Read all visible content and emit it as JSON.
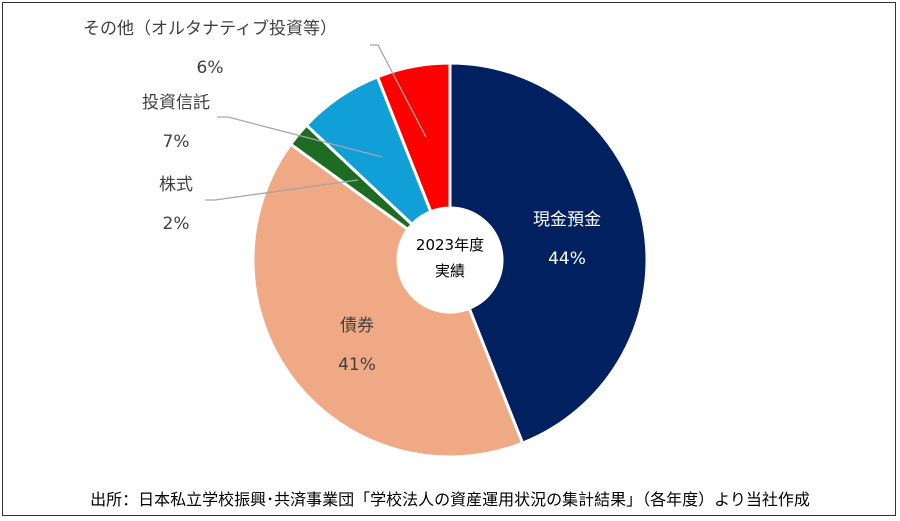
{
  "chart_data": {
    "type": "pie",
    "variant": "donut",
    "center_label": [
      "2023年度",
      "実績"
    ],
    "slices": [
      {
        "label": "現金預金",
        "value": 44,
        "value_label": "44%",
        "color": "#002060"
      },
      {
        "label": "債券",
        "value": 41,
        "value_label": "41%",
        "color": "#F0A985"
      },
      {
        "label": "株式",
        "value": 2,
        "value_label": "2%",
        "color": "#1E6B23"
      },
      {
        "label": "投資信託",
        "value": 7,
        "value_label": "7%",
        "color": "#119FD7"
      },
      {
        "label": "その他（オルタナティブ投資等）",
        "value": 6,
        "value_label": "6%",
        "color": "#FF0000"
      }
    ]
  },
  "footer": "出所：日本私立学校振興･共済事業団「学校法人の資産運用状況の集計結果」（各年度）より当社作成"
}
